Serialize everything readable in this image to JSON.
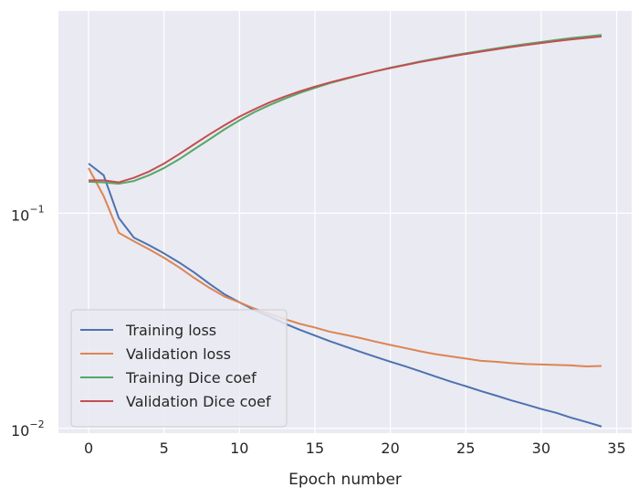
{
  "chart_data": {
    "type": "line",
    "xlabel": "Epoch number",
    "ylabel": "",
    "yscale": "log",
    "xlim": [
      -2,
      36
    ],
    "ylim": [
      0.0095,
      0.87
    ],
    "grid": true,
    "legend_position": "lower-left",
    "xticks": [
      0,
      5,
      10,
      15,
      20,
      25,
      30,
      35
    ],
    "xtick_labels": [
      "0",
      "5",
      "10",
      "15",
      "20",
      "25",
      "30",
      "35"
    ],
    "yticks": [
      {
        "value": 0.1,
        "base": "10",
        "exp": "−1"
      },
      {
        "value": 0.01,
        "base": "10",
        "exp": "−2"
      }
    ],
    "x": [
      0,
      1,
      2,
      3,
      4,
      5,
      6,
      7,
      8,
      9,
      10,
      11,
      12,
      13,
      14,
      15,
      16,
      17,
      18,
      19,
      20,
      21,
      22,
      23,
      24,
      25,
      26,
      27,
      28,
      29,
      30,
      31,
      32,
      33,
      34
    ],
    "series": [
      {
        "name": "Training loss",
        "color": "#4c72b0",
        "values": [
          0.17,
          0.15,
          0.095,
          0.077,
          0.071,
          0.065,
          0.059,
          0.053,
          0.047,
          0.042,
          0.0385,
          0.0355,
          0.033,
          0.0307,
          0.0287,
          0.027,
          0.0254,
          0.024,
          0.0227,
          0.0215,
          0.0204,
          0.0194,
          0.0184,
          0.0174,
          0.0165,
          0.0157,
          0.0149,
          0.0142,
          0.0135,
          0.0129,
          0.0123,
          0.0118,
          0.0112,
          0.0107,
          0.0102
        ]
      },
      {
        "name": "Validation loss",
        "color": "#dd8452",
        "values": [
          0.162,
          0.12,
          0.081,
          0.074,
          0.068,
          0.062,
          0.056,
          0.05,
          0.045,
          0.041,
          0.0385,
          0.036,
          0.034,
          0.0322,
          0.0306,
          0.0294,
          0.0281,
          0.0272,
          0.0263,
          0.0253,
          0.0244,
          0.0236,
          0.0228,
          0.0221,
          0.0216,
          0.0211,
          0.0206,
          0.0204,
          0.0201,
          0.0199,
          0.0198,
          0.0197,
          0.0196,
          0.0194,
          0.0195
        ]
      },
      {
        "name": "Training Dice coef",
        "color": "#55a868",
        "values": [
          0.14,
          0.139,
          0.137,
          0.141,
          0.15,
          0.162,
          0.178,
          0.198,
          0.22,
          0.245,
          0.27,
          0.295,
          0.318,
          0.34,
          0.362,
          0.382,
          0.402,
          0.42,
          0.438,
          0.456,
          0.474,
          0.49,
          0.507,
          0.523,
          0.538,
          0.553,
          0.568,
          0.583,
          0.597,
          0.611,
          0.624,
          0.638,
          0.651,
          0.662,
          0.673
        ]
      },
      {
        "name": "Validation Dice coef",
        "color": "#c44e52",
        "values": [
          0.142,
          0.142,
          0.139,
          0.146,
          0.156,
          0.17,
          0.188,
          0.209,
          0.232,
          0.256,
          0.281,
          0.304,
          0.327,
          0.348,
          0.368,
          0.387,
          0.405,
          0.422,
          0.439,
          0.456,
          0.472,
          0.488,
          0.504,
          0.519,
          0.534,
          0.549,
          0.563,
          0.577,
          0.591,
          0.604,
          0.617,
          0.63,
          0.642,
          0.652,
          0.662
        ]
      }
    ]
  },
  "theme": {
    "plot_background": "#eaeaf2",
    "grid_color": "#ffffff",
    "text_color": "#262626"
  }
}
